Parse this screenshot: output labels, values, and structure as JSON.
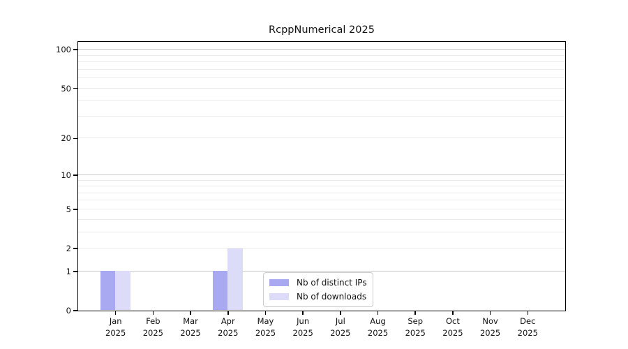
{
  "chart_data": {
    "type": "bar",
    "title": "RcppNumerical 2025",
    "x_year": "2025",
    "categories": [
      "Jan",
      "Feb",
      "Mar",
      "Apr",
      "May",
      "Jun",
      "Jul",
      "Aug",
      "Sep",
      "Oct",
      "Nov",
      "Dec"
    ],
    "series": [
      {
        "name": "Nb of distinct IPs",
        "color": "#a9a9f2",
        "values": [
          1,
          0,
          0,
          1,
          0,
          0,
          0,
          0,
          0,
          0,
          0,
          0
        ]
      },
      {
        "name": "Nb of downloads",
        "color": "#dcdcf8",
        "values": [
          1,
          0,
          0,
          2,
          0,
          0,
          0,
          0,
          0,
          0,
          0,
          0
        ]
      }
    ],
    "yscale": "log1p",
    "ylim": [
      0,
      115
    ],
    "yticks": [
      0,
      1,
      2,
      5,
      10,
      20,
      50,
      100
    ],
    "major_gridlines": [
      1,
      10,
      100
    ],
    "minor_gridlines": [
      2,
      3,
      4,
      5,
      6,
      7,
      8,
      9,
      20,
      30,
      40,
      50,
      60,
      70,
      80,
      90
    ],
    "legend_position": "lower center",
    "grid_on": true,
    "colors": {
      "grid_major": "#c9c9c9",
      "grid_minor": "#ebebeb",
      "axis": "#000000",
      "text": "#111111",
      "background": "#ffffff"
    }
  }
}
